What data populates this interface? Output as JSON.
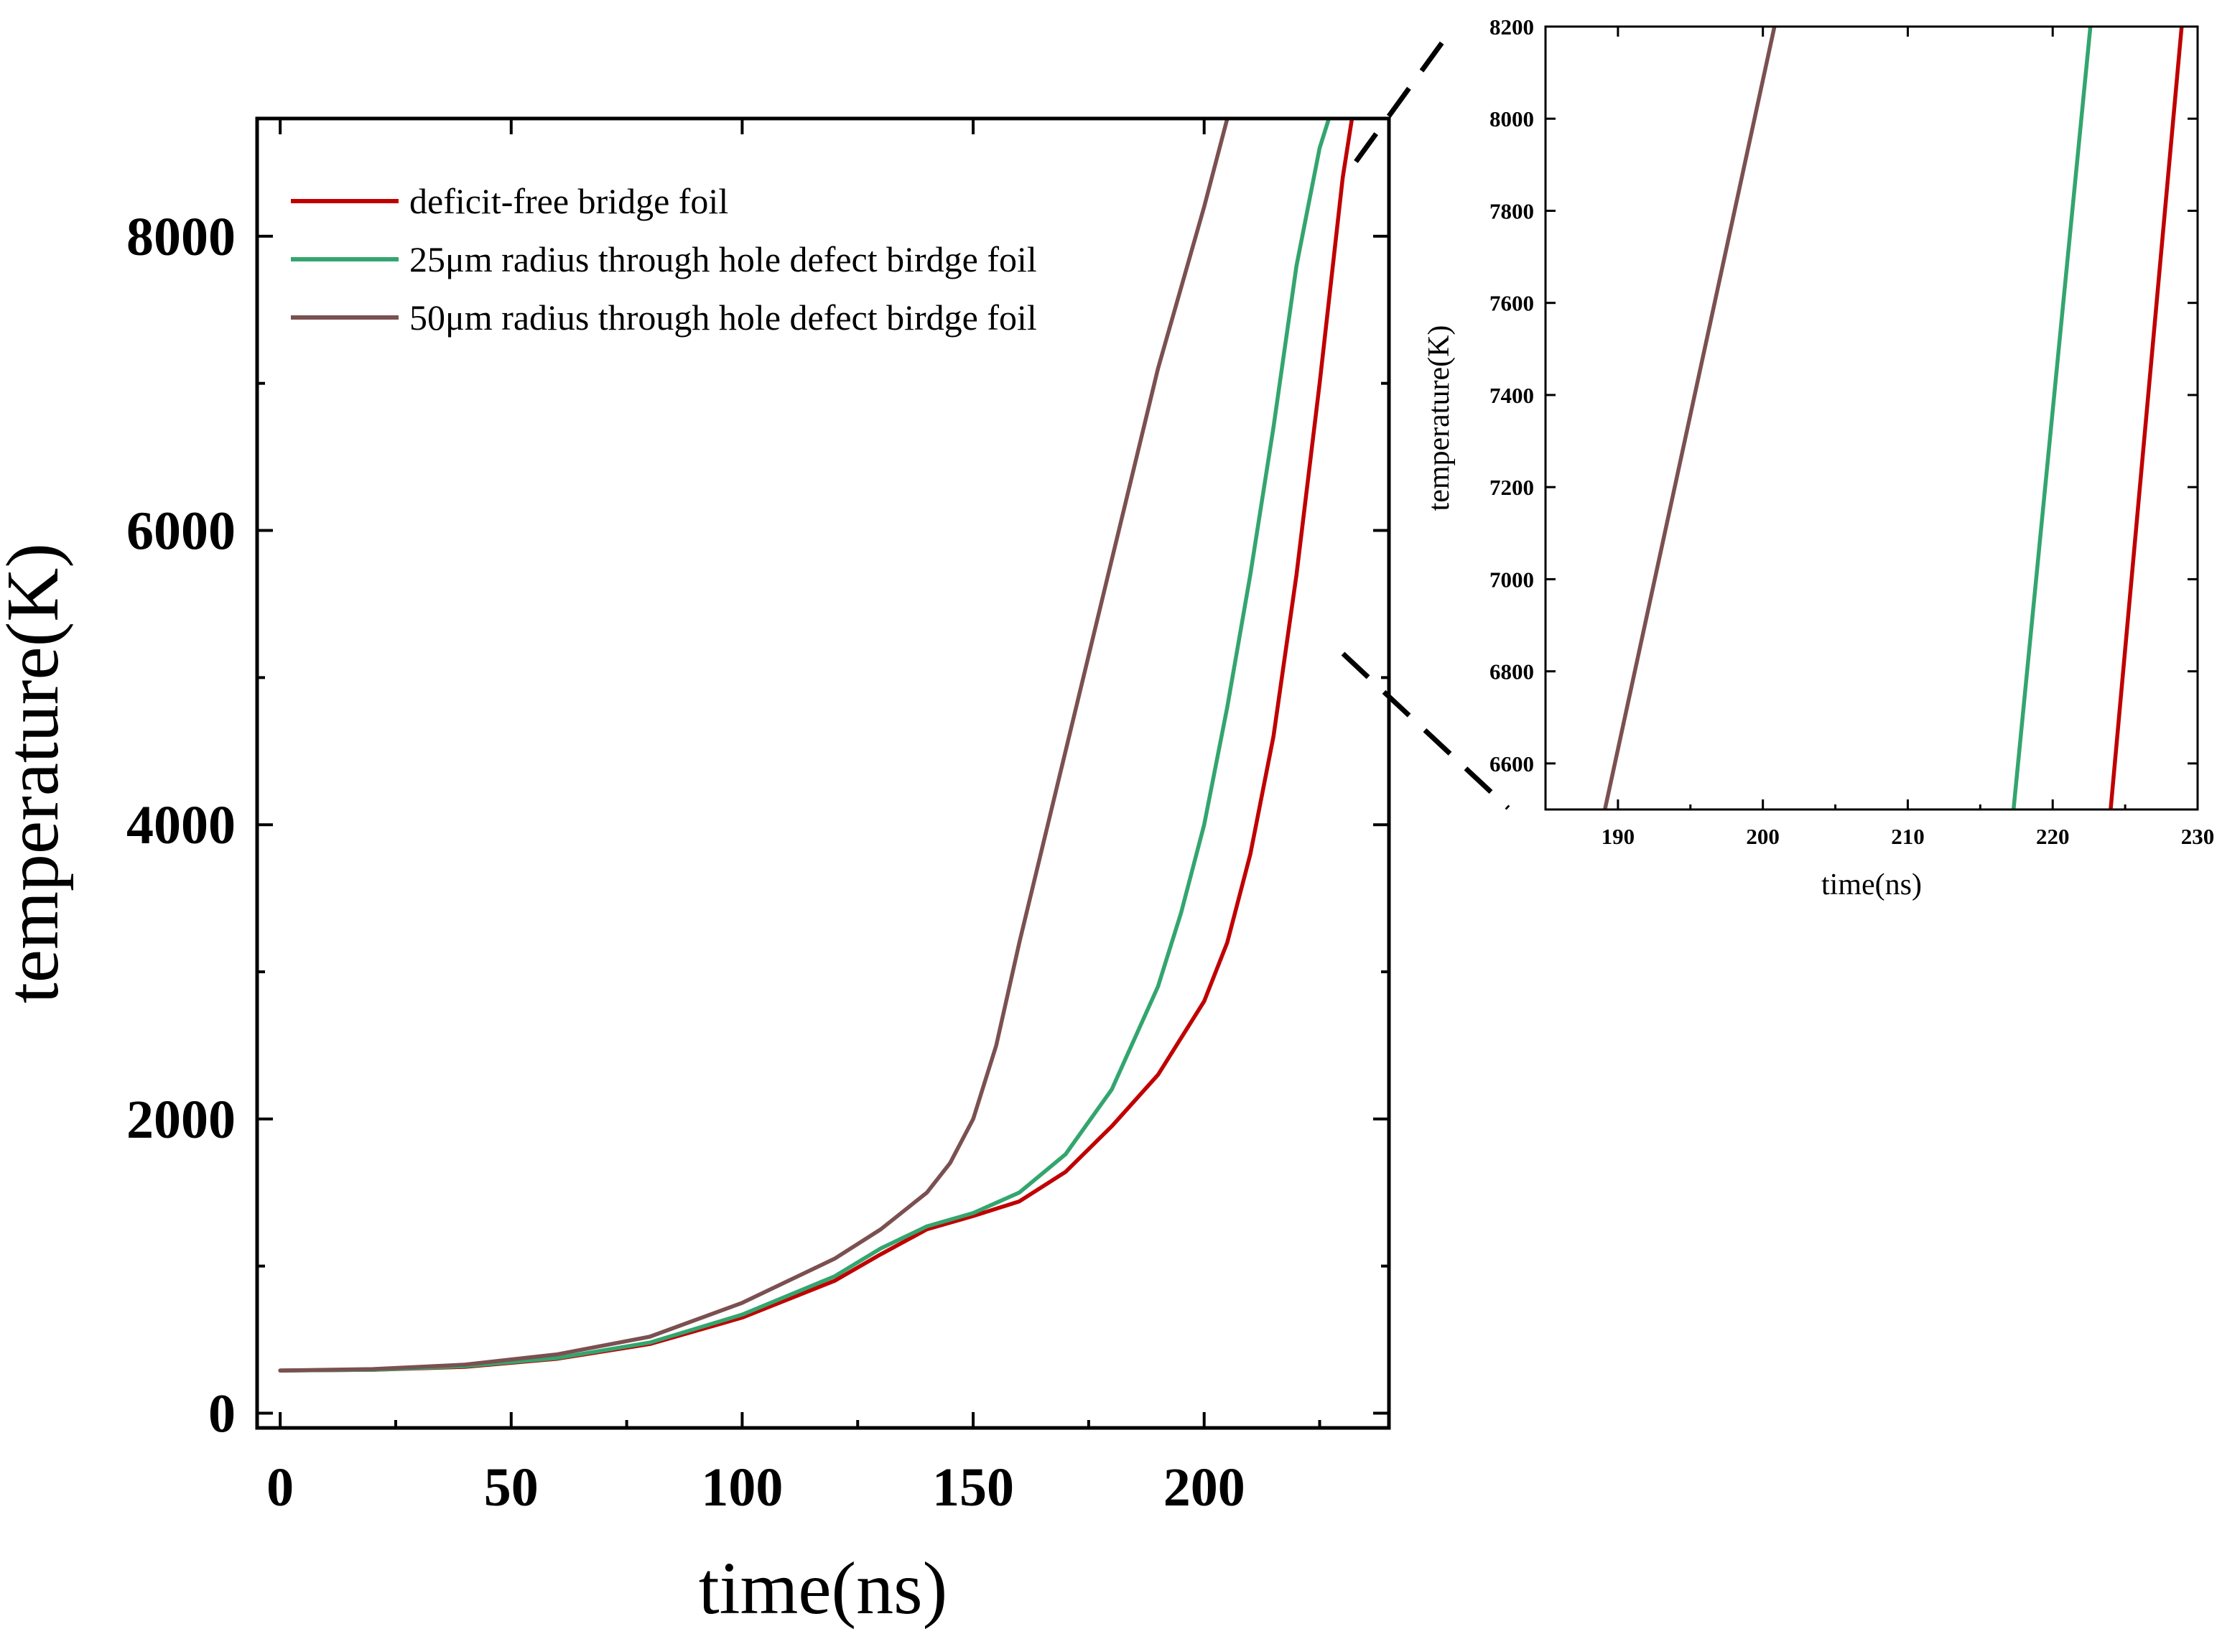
{
  "chart_data": [
    {
      "type": "line",
      "title": "",
      "xlabel": "time(ns)",
      "ylabel": "temperature(K)",
      "xlim": [
        -5,
        240
      ],
      "ylim": [
        -100,
        8800
      ],
      "xticks": [
        0,
        50,
        100,
        150,
        200
      ],
      "yticks": [
        0,
        2000,
        4000,
        6000,
        8000
      ],
      "grid": false,
      "legend_position": "top-left",
      "series": [
        {
          "name": "deficit-free bridge foil",
          "color": "#c00000",
          "x": [
            0,
            20,
            40,
            60,
            80,
            100,
            120,
            130,
            140,
            150,
            160,
            170,
            180,
            190,
            200,
            205,
            210,
            215,
            220,
            225,
            230,
            232
          ],
          "y": [
            290,
            295,
            315,
            370,
            470,
            650,
            900,
            1080,
            1250,
            1340,
            1440,
            1640,
            1950,
            2300,
            2800,
            3200,
            3800,
            4600,
            5700,
            7000,
            8400,
            8800
          ]
        },
        {
          "name": "25μm radius through hole defect birdge foil",
          "color": "#33a56e",
          "x": [
            0,
            20,
            40,
            60,
            80,
            100,
            120,
            130,
            140,
            150,
            160,
            170,
            180,
            190,
            195,
            200,
            205,
            210,
            215,
            220,
            225,
            227
          ],
          "y": [
            290,
            295,
            320,
            375,
            480,
            670,
            930,
            1120,
            1270,
            1360,
            1500,
            1760,
            2200,
            2900,
            3400,
            4000,
            4800,
            5700,
            6700,
            7800,
            8600,
            8800
          ]
        },
        {
          "name": "50μm radius through hole defect birdge foil",
          "color": "#7b5050",
          "x": [
            0,
            20,
            40,
            60,
            80,
            100,
            120,
            130,
            140,
            145,
            150,
            155,
            160,
            170,
            180,
            190,
            200,
            205
          ],
          "y": [
            290,
            300,
            330,
            400,
            520,
            750,
            1050,
            1250,
            1500,
            1700,
            2000,
            2500,
            3200,
            4500,
            5800,
            7100,
            8200,
            8800
          ]
        }
      ]
    },
    {
      "type": "line",
      "title": "",
      "xlabel": "time(ns)",
      "ylabel": "temperature(K)",
      "xlim": [
        185,
        230
      ],
      "ylim": [
        6500,
        8200
      ],
      "xticks": [
        190,
        200,
        210,
        220,
        230
      ],
      "yticks": [
        6600,
        6800,
        7000,
        7200,
        7400,
        7600,
        7800,
        8000,
        8200
      ],
      "grid": false,
      "series": [
        {
          "name": "deficit-free bridge foil",
          "color": "#c00000",
          "x": [
            224.0,
            228.9
          ],
          "y": [
            6500,
            8200
          ]
        },
        {
          "name": "25μm radius through hole defect birdge foil",
          "color": "#33a56e",
          "x": [
            217.3,
            222.6
          ],
          "y": [
            6500,
            8200
          ]
        },
        {
          "name": "50μm radius through hole defect birdge foil",
          "color": "#7b5050",
          "x": [
            189.1,
            200.8
          ],
          "y": [
            6500,
            8200
          ]
        }
      ]
    }
  ]
}
